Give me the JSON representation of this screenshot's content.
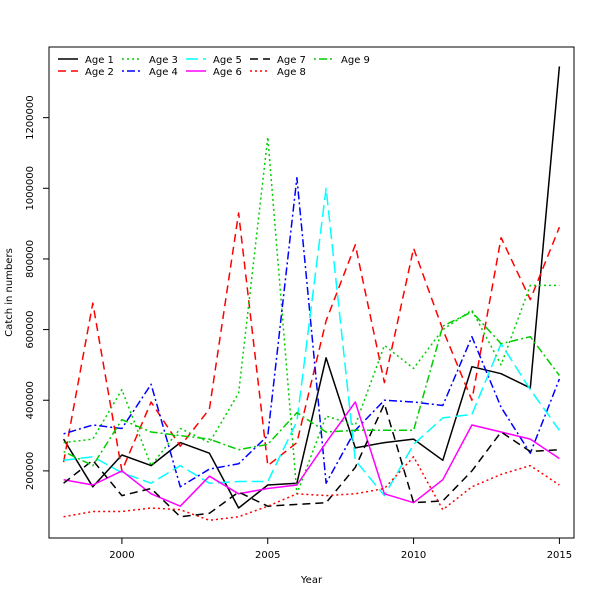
{
  "chart_data": {
    "type": "line",
    "title": "",
    "xlabel": "Year",
    "ylabel": "Catch in numbers",
    "xlim": [
      1997.5,
      2015.5
    ],
    "ylim": [
      10000,
      1400000
    ],
    "x_ticks": [
      2000,
      2005,
      2010,
      2015
    ],
    "x_tick_labels": [
      "2000",
      "2005",
      "2010",
      "2015"
    ],
    "y_ticks": [
      200000,
      400000,
      600000,
      800000,
      1000000,
      1200000
    ],
    "y_tick_labels": [
      "200000",
      "400000",
      "600000",
      "800000",
      "1000000",
      "1200000"
    ],
    "legend_placement": "top-left",
    "x": [
      1998,
      1999,
      2000,
      2001,
      2002,
      2003,
      2004,
      2005,
      2006,
      2007,
      2008,
      2009,
      2010,
      2011,
      2012,
      2013,
      2014,
      2015
    ],
    "series": [
      {
        "name": "Age 1",
        "color": "#000000",
        "dash": "solid",
        "values": [
          290000,
          155000,
          245000,
          215000,
          280000,
          250000,
          95000,
          160000,
          165000,
          520000,
          265000,
          280000,
          290000,
          230000,
          495000,
          475000,
          435000,
          1345000
        ]
      },
      {
        "name": "Age 2",
        "color": "#ff0000",
        "dash": "dashed",
        "values": [
          225000,
          675000,
          200000,
          395000,
          270000,
          375000,
          930000,
          215000,
          280000,
          625000,
          840000,
          450000,
          830000,
          600000,
          400000,
          860000,
          685000,
          890000
        ]
      },
      {
        "name": "Age 3",
        "color": "#00cd00",
        "dash": "dotted",
        "values": [
          280000,
          290000,
          430000,
          215000,
          320000,
          280000,
          420000,
          1145000,
          135000,
          355000,
          330000,
          555000,
          490000,
          600000,
          655000,
          500000,
          725000,
          725000
        ]
      },
      {
        "name": "Age 4",
        "color": "#0000ff",
        "dash": "dotdash",
        "values": [
          305000,
          330000,
          320000,
          445000,
          155000,
          205000,
          220000,
          300000,
          1030000,
          165000,
          315000,
          400000,
          395000,
          385000,
          580000,
          380000,
          250000,
          460000
        ]
      },
      {
        "name": "Age 5",
        "color": "#00ffff",
        "dash": "longdash",
        "values": [
          230000,
          240000,
          195000,
          165000,
          215000,
          165000,
          170000,
          170000,
          340000,
          1000000,
          230000,
          130000,
          275000,
          350000,
          360000,
          560000,
          430000,
          315000
        ]
      },
      {
        "name": "Age 6",
        "color": "#ff00ff",
        "dash": "solid",
        "values": [
          175000,
          160000,
          200000,
          135000,
          100000,
          185000,
          135000,
          150000,
          160000,
          280000,
          395000,
          135000,
          110000,
          175000,
          330000,
          310000,
          290000,
          235000
        ]
      },
      {
        "name": "Age 7",
        "color": "#000000",
        "dash": "dashed",
        "values": [
          165000,
          230000,
          130000,
          150000,
          70000,
          80000,
          140000,
          100000,
          105000,
          110000,
          210000,
          390000,
          110000,
          115000,
          200000,
          310000,
          255000,
          260000
        ]
      },
      {
        "name": "Age 8",
        "color": "#ff0000",
        "dash": "dotted",
        "values": [
          70000,
          85000,
          85000,
          95000,
          90000,
          60000,
          70000,
          100000,
          135000,
          130000,
          135000,
          150000,
          240000,
          90000,
          155000,
          190000,
          215000,
          160000
        ]
      },
      {
        "name": "Age 9",
        "color": "#00cd00",
        "dash": "dotdash",
        "values": [
          255000,
          215000,
          345000,
          310000,
          300000,
          290000,
          260000,
          275000,
          365000,
          310000,
          315000,
          315000,
          315000,
          610000,
          650000,
          560000,
          580000,
          470000
        ]
      }
    ]
  }
}
